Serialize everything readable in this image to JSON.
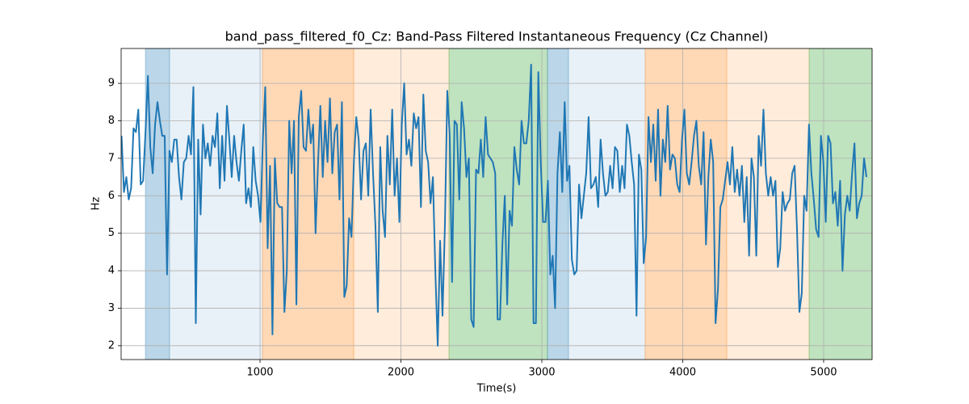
{
  "chart_data": {
    "type": "line",
    "title": "band_pass_filtered_f0_Cz: Band-Pass Filtered Instantaneous Frequency (Cz Channel)",
    "xlabel": "Time(s)",
    "ylabel": "Hz",
    "color": "#1f77b4",
    "grid": true,
    "xlim": [
      14,
      5344
    ],
    "ylim": [
      1.63,
      9.93
    ],
    "xticks": [
      1000,
      2000,
      3000,
      4000,
      5000
    ],
    "yticks": [
      2,
      3,
      4,
      5,
      6,
      7,
      8,
      9
    ],
    "spans": [
      {
        "start": 186,
        "end": 358,
        "color": "#1f77b4",
        "opacity": 0.3
      },
      {
        "start": 358,
        "end": 1017,
        "color": "#1f77b4",
        "opacity": 0.1
      },
      {
        "start": 1017,
        "end": 1665,
        "color": "#ff7f0e",
        "opacity": 0.3
      },
      {
        "start": 1665,
        "end": 2341,
        "color": "#ff7f0e",
        "opacity": 0.15
      },
      {
        "start": 2341,
        "end": 3040,
        "color": "#2ca02c",
        "opacity": 0.3
      },
      {
        "start": 3040,
        "end": 3189,
        "color": "#1f77b4",
        "opacity": 0.3
      },
      {
        "start": 3189,
        "end": 3733,
        "color": "#1f77b4",
        "opacity": 0.1
      },
      {
        "start": 3733,
        "end": 4312,
        "color": "#ff7f0e",
        "opacity": 0.3
      },
      {
        "start": 4312,
        "end": 4897,
        "color": "#ff7f0e",
        "opacity": 0.15
      },
      {
        "start": 4897,
        "end": 5344,
        "color": "#2ca02c",
        "opacity": 0.3
      }
    ],
    "x": [
      17,
      34,
      51,
      68,
      85,
      102,
      119,
      136,
      153,
      170,
      187,
      204,
      221,
      238,
      255,
      272,
      289,
      306,
      323,
      340,
      357,
      374,
      391,
      408,
      425,
      442,
      459,
      476,
      493,
      510,
      527,
      544,
      561,
      578,
      595,
      612,
      629,
      646,
      663,
      680,
      697,
      714,
      731,
      748,
      765,
      782,
      799,
      816,
      833,
      850,
      867,
      884,
      901,
      918,
      935,
      952,
      969,
      986,
      1003,
      1020,
      1037,
      1054,
      1071,
      1088,
      1105,
      1122,
      1139,
      1156,
      1173,
      1190,
      1207,
      1224,
      1241,
      1258,
      1275,
      1292,
      1309,
      1326,
      1343,
      1360,
      1377,
      1394,
      1411,
      1428,
      1445,
      1462,
      1479,
      1496,
      1513,
      1530,
      1547,
      1564,
      1581,
      1598,
      1615,
      1632,
      1649,
      1666,
      1683,
      1700,
      1717,
      1734,
      1751,
      1768,
      1785,
      1802,
      1819,
      1836,
      1853,
      1870,
      1887,
      1904,
      1921,
      1938,
      1955,
      1972,
      1989,
      2006,
      2023,
      2040,
      2057,
      2074,
      2091,
      2108,
      2125,
      2142,
      2159,
      2176,
      2193,
      2210,
      2227,
      2244,
      2261,
      2278,
      2295,
      2312,
      2329,
      2346,
      2363,
      2380,
      2397,
      2414,
      2431,
      2448,
      2465,
      2482,
      2499,
      2516,
      2533,
      2550,
      2567,
      2584,
      2601,
      2618,
      2635,
      2652,
      2669,
      2686,
      2703,
      2720,
      2737,
      2754,
      2771,
      2788,
      2805,
      2822,
      2839,
      2856,
      2873,
      2890,
      2907,
      2924,
      2941,
      2958,
      2975,
      2992,
      3009,
      3026,
      3043,
      3060,
      3077,
      3094,
      3111,
      3128,
      3145,
      3162,
      3179,
      3196,
      3213,
      3230,
      3247,
      3264,
      3281,
      3298,
      3315,
      3332,
      3349,
      3366,
      3383,
      3400,
      3417,
      3434,
      3451,
      3468,
      3485,
      3502,
      3519,
      3536,
      3553,
      3570,
      3587,
      3604,
      3621,
      3638,
      3655,
      3672,
      3689,
      3706,
      3723,
      3740,
      3757,
      3774,
      3791,
      3808,
      3825,
      3842,
      3859,
      3876,
      3893,
      3910,
      3927,
      3944,
      3961,
      3978,
      3995,
      4012,
      4029,
      4046,
      4063,
      4080,
      4097,
      4114,
      4131,
      4148,
      4165,
      4182,
      4199,
      4216,
      4233,
      4250,
      4267,
      4284,
      4301,
      4318,
      4335,
      4352,
      4369,
      4386,
      4403,
      4420,
      4437,
      4454,
      4471,
      4488,
      4505,
      4522,
      4539,
      4556,
      4573,
      4590,
      4607,
      4624,
      4641,
      4658,
      4675,
      4692,
      4709,
      4726,
      4743,
      4760,
      4777,
      4794,
      4811,
      4828,
      4845,
      4862,
      4879,
      4896,
      4913,
      4930,
      4947,
      4964,
      4981,
      4998,
      5015,
      5032,
      5049,
      5066,
      5083,
      5100,
      5117,
      5134,
      5151,
      5168,
      5185,
      5202,
      5219,
      5236,
      5253,
      5270,
      5287,
      5304
    ],
    "values": [
      7.6,
      6.1,
      6.5,
      5.9,
      6.2,
      7.8,
      7.7,
      8.3,
      6.3,
      6.4,
      7.7,
      9.2,
      7.3,
      6.6,
      7.9,
      8.5,
      8.0,
      7.6,
      7.6,
      3.9,
      7.2,
      6.9,
      7.5,
      7.5,
      6.5,
      5.9,
      6.9,
      7.0,
      7.6,
      7.1,
      8.9,
      2.6,
      7.5,
      5.5,
      7.9,
      7.0,
      7.4,
      6.8,
      7.6,
      7.3,
      8.2,
      6.2,
      7.6,
      6.4,
      8.4,
      7.5,
      6.5,
      7.6,
      6.9,
      6.4,
      7.2,
      7.9,
      5.8,
      6.2,
      5.7,
      7.3,
      6.4,
      6.0,
      5.3,
      7.5,
      8.9,
      4.6,
      6.8,
      2.3,
      7.0,
      5.8,
      5.7,
      5.7,
      2.9,
      4.0,
      8.0,
      6.6,
      8.0,
      3.1,
      8.1,
      8.8,
      7.3,
      7.2,
      8.3,
      7.4,
      7.9,
      5.0,
      6.8,
      8.4,
      6.5,
      8.0,
      6.9,
      8.6,
      6.6,
      7.7,
      7.9,
      5.9,
      8.5,
      3.3,
      3.6,
      5.4,
      4.9,
      6.9,
      8.1,
      7.5,
      5.9,
      7.2,
      7.4,
      6.0,
      8.3,
      6.6,
      5.2,
      2.9,
      7.3,
      5.6,
      4.9,
      7.6,
      6.3,
      8.3,
      6.0,
      7.0,
      5.3,
      7.9,
      9.0,
      7.1,
      7.5,
      6.8,
      8.2,
      7.8,
      8.1,
      5.7,
      8.7,
      7.2,
      6.9,
      5.8,
      6.5,
      4.0,
      2.0,
      4.8,
      2.8,
      5.2,
      8.8,
      7.6,
      3.7,
      8.0,
      7.9,
      5.9,
      8.5,
      7.8,
      6.5,
      7.0,
      2.7,
      2.5,
      6.7,
      6.6,
      7.5,
      6.5,
      8.1,
      7.1,
      7.0,
      6.9,
      6.6,
      2.7,
      2.7,
      4.7,
      6.0,
      3.1,
      5.6,
      5.2,
      7.3,
      6.7,
      6.3,
      8.0,
      7.4,
      7.4,
      8.0,
      9.5,
      2.6,
      2.6,
      9.3,
      6.9,
      5.3,
      5.3,
      6.4,
      3.9,
      4.4,
      3.0,
      6.6,
      7.7,
      6.1,
      8.5,
      6.4,
      6.8,
      4.3,
      3.9,
      4.0,
      6.3,
      5.4,
      6.0,
      6.6,
      8.1,
      6.2,
      6.3,
      6.5,
      5.7,
      7.5,
      6.6,
      6.0,
      6.1,
      6.8,
      6.2,
      7.3,
      7.2,
      6.1,
      6.8,
      6.2,
      7.9,
      7.6,
      6.9,
      6.3,
      2.8,
      7.1,
      6.7,
      4.2,
      4.9,
      8.1,
      6.9,
      7.9,
      6.4,
      8.3,
      6.0,
      7.5,
      6.9,
      8.4,
      6.7,
      7.1,
      7.0,
      6.3,
      6.1,
      7.5,
      8.3,
      6.6,
      6.3,
      6.9,
      7.6,
      8.0,
      6.8,
      6.3,
      7.7,
      4.7,
      6.5,
      7.5,
      6.9,
      2.6,
      3.5,
      5.7,
      5.9,
      6.4,
      6.9,
      6.3,
      7.3,
      6.1,
      6.7,
      6.0,
      6.8,
      5.3,
      6.5,
      4.4,
      7.0,
      6.5,
      4.4,
      7.6,
      6.8,
      8.3,
      6.6,
      6.0,
      6.5,
      6.0,
      6.4,
      4.1,
      4.6,
      6.1,
      5.6,
      5.8,
      5.9,
      6.6,
      6.8,
      5.1,
      2.9,
      3.4,
      6.0,
      5.6,
      7.9,
      6.6,
      5.9,
      5.1,
      4.9,
      7.6,
      6.9,
      5.3,
      7.6,
      7.4,
      5.8,
      6.1,
      5.2,
      6.4,
      4.0,
      5.5,
      6.0,
      5.6,
      6.6,
      7.4,
      5.4,
      5.8,
      6.0,
      7.0,
      6.5
    ]
  }
}
